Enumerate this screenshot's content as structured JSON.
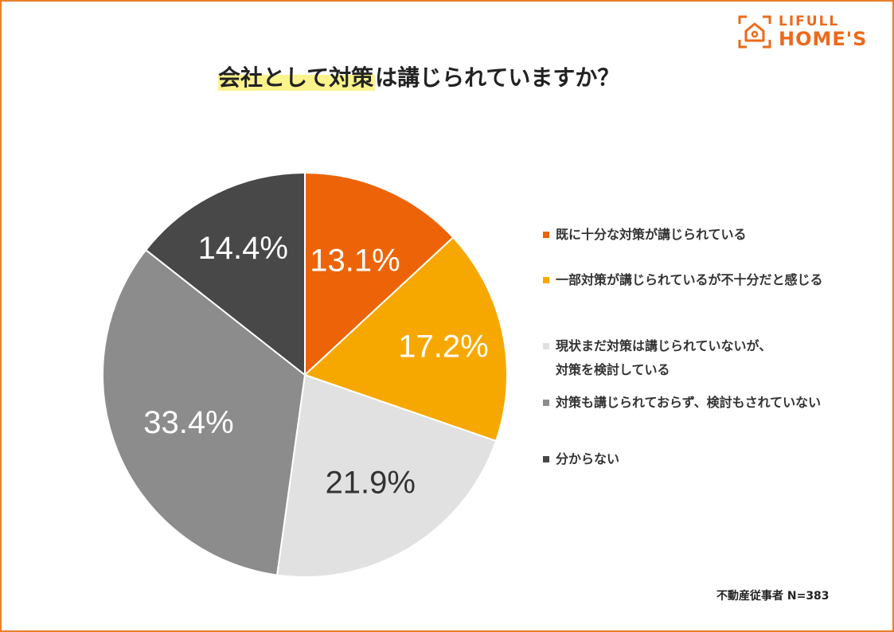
{
  "logo": {
    "line1": "LIFULL",
    "line2": "HOME'S",
    "color": "#ec6a1c"
  },
  "title": {
    "highlight": "会社として対策",
    "rest": "は講じられていますか？",
    "highlight_color": "#fbf38d"
  },
  "frame_color": "#e8802a",
  "chart_data": {
    "type": "pie",
    "title": "会社として対策は講じられていますか？",
    "start": "12 o'clock, clockwise",
    "slices": [
      {
        "label": "既に十分な対策が講じられている",
        "value": 13.1,
        "display": "13.1%",
        "color": "#ec6407",
        "text_color": "#ffffff"
      },
      {
        "label": "一部対策が講じられているが不十分だと感じる",
        "value": 17.2,
        "display": "17.2%",
        "color": "#f7a800",
        "text_color": "#ffffff"
      },
      {
        "label": "現状まだ対策は講じられていないが、\n対策を検討している",
        "value": 21.9,
        "display": "21.9%",
        "color": "#e1e1e1",
        "text_color": "#333333"
      },
      {
        "label": "対策も講じられておらず、検討もされていない",
        "value": 33.4,
        "display": "33.4%",
        "color": "#8c8c8c",
        "text_color": "#ffffff"
      },
      {
        "label": "分からない",
        "value": 14.4,
        "display": "14.4%",
        "color": "#484848",
        "text_color": "#ffffff"
      }
    ],
    "legend_position": "right"
  },
  "note": "不動産従事者 N=383"
}
